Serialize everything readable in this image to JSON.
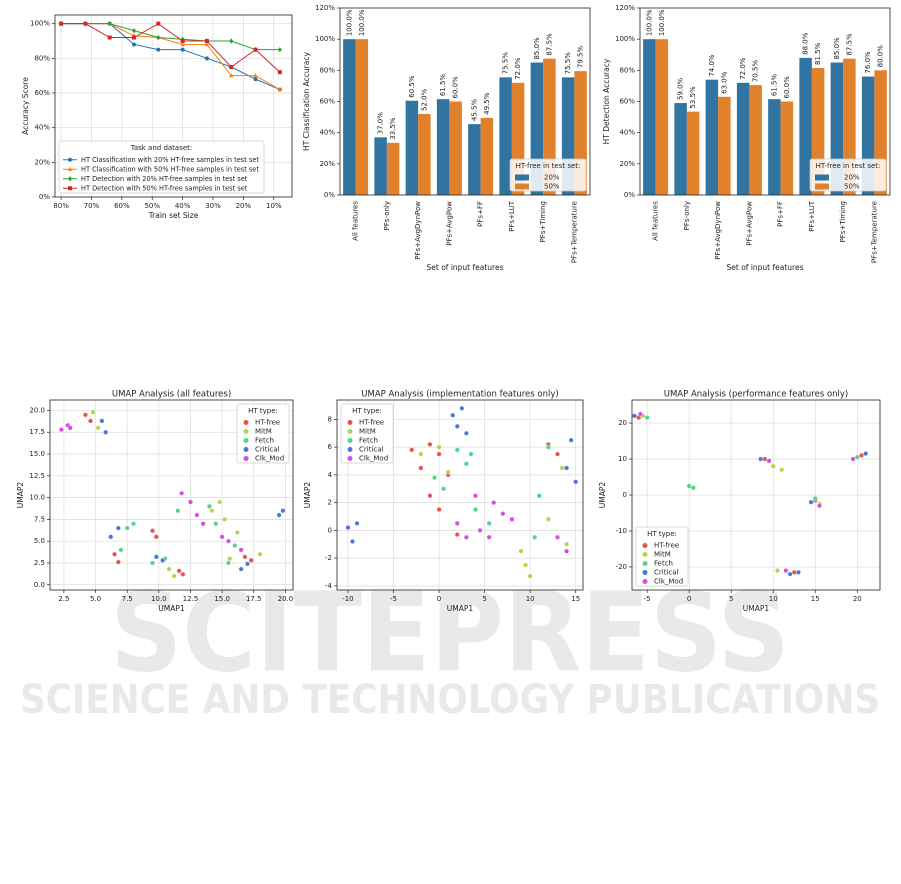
{
  "watermark": {
    "title": "SCITEPRESS",
    "subtitle": "SCIENCE AND TECHNOLOGY PUBLICATIONS"
  },
  "chart_data": [
    {
      "type": "line",
      "xlabel": "Train set Size",
      "ylabel": "Accuracy Score",
      "x": [
        80,
        72,
        64,
        56,
        48,
        40,
        32,
        24,
        16,
        8
      ],
      "xlim": [
        82,
        4
      ],
      "xticks": [
        {
          "value": 80,
          "label": "80%"
        },
        {
          "value": 70,
          "label": "70%"
        },
        {
          "value": 60,
          "label": "60%"
        },
        {
          "value": 50,
          "label": "50%"
        },
        {
          "value": 40,
          "label": "40%"
        },
        {
          "value": 30,
          "label": "30%"
        },
        {
          "value": 20,
          "label": "20%"
        },
        {
          "value": 10,
          "label": "10%"
        }
      ],
      "ylim": [
        0,
        105
      ],
      "yticks": [
        {
          "value": 0,
          "label": "0%"
        },
        {
          "value": 20,
          "label": "20%"
        },
        {
          "value": 40,
          "label": "40%"
        },
        {
          "value": 60,
          "label": "60%"
        },
        {
          "value": 80,
          "label": "80%"
        },
        {
          "value": 100,
          "label": "100%"
        }
      ],
      "grid": true,
      "legend": "lower left",
      "legend_title": "Task and dataset:",
      "series": [
        {
          "name": "HT Classification with 20% HT-free samples in test set",
          "color": "#1f77b4",
          "marker": "circle",
          "values": [
            100,
            100,
            100,
            88,
            85,
            85,
            80,
            75,
            68,
            62
          ]
        },
        {
          "name": "HT Classification with 50% HT-free samples in test set",
          "color": "#ff7f0e",
          "marker": "triangle",
          "values": [
            100,
            100,
            100,
            93,
            92,
            88,
            88,
            70,
            70,
            62
          ]
        },
        {
          "name": "HT Detection with 20% HT-free samples in test set",
          "color": "#2ca02c",
          "marker": "diamond",
          "values": [
            100,
            100,
            100,
            96,
            92,
            91,
            90,
            90,
            85,
            85
          ]
        },
        {
          "name": "HT Detection with 50% HT-free samples in test set",
          "color": "#d62728",
          "marker": "square",
          "values": [
            100,
            100,
            92,
            92,
            100,
            90,
            90,
            75,
            85,
            72
          ]
        }
      ]
    },
    {
      "type": "bar",
      "xlabel": "Set of input features",
      "ylabel": "HT Classification Accuracy",
      "categories": [
        "All features",
        "PFs-only",
        "PFs+AvgDynPow",
        "PFs+AvgPow",
        "PFs+FF",
        "PFs+LUT",
        "PFs+Timing",
        "PFs+Temperature"
      ],
      "ylim": [
        0,
        120
      ],
      "yticks": [
        {
          "value": 0,
          "label": "0%"
        },
        {
          "value": 20,
          "label": "20%"
        },
        {
          "value": 40,
          "label": "40%"
        },
        {
          "value": 60,
          "label": "60%"
        },
        {
          "value": 80,
          "label": "80%"
        },
        {
          "value": 100,
          "label": "100%"
        },
        {
          "value": 120,
          "label": "120%"
        }
      ],
      "grid": false,
      "legend": "lower right",
      "legend_title": "HT-free in test set:",
      "series": [
        {
          "name": "20%",
          "color": "#3274a1",
          "values": [
            100,
            37,
            60.5,
            61.5,
            45.5,
            75.5,
            85,
            75.5
          ],
          "value_labels": [
            "100.0%",
            "37.0%",
            "60.5%",
            "61.5%",
            "45.5%",
            "75.5%",
            "85.0%",
            "75.5%"
          ]
        },
        {
          "name": "50%",
          "color": "#e1812c",
          "values": [
            100,
            33.5,
            52,
            60,
            49.5,
            72,
            87.5,
            79.5
          ],
          "value_labels": [
            "100.0%",
            "33.5%",
            "52.0%",
            "60.0%",
            "49.5%",
            "72.0%",
            "87.5%",
            "79.5%"
          ]
        }
      ]
    },
    {
      "type": "bar",
      "xlabel": "Set of input features",
      "ylabel": "HT Detection Accuracy",
      "categories": [
        "All features",
        "PFs-only",
        "PFs+AvgDynPow",
        "PFs+AvgPow",
        "PFs+FF",
        "PFs+LUT",
        "PFs+Timing",
        "PFs+Temperature"
      ],
      "ylim": [
        0,
        120
      ],
      "yticks": [
        {
          "value": 0,
          "label": "0%"
        },
        {
          "value": 20,
          "label": "20%"
        },
        {
          "value": 40,
          "label": "40%"
        },
        {
          "value": 60,
          "label": "60%"
        },
        {
          "value": 80,
          "label": "80%"
        },
        {
          "value": 100,
          "label": "100%"
        },
        {
          "value": 120,
          "label": "120%"
        }
      ],
      "grid": false,
      "legend": "lower right",
      "legend_title": "HT-free in test set:",
      "series": [
        {
          "name": "20%",
          "color": "#3274a1",
          "values": [
            100,
            59,
            74,
            72,
            61.5,
            88,
            85,
            76
          ],
          "value_labels": [
            "100.0%",
            "59.0%",
            "74.0%",
            "72.0%",
            "61.5%",
            "88.0%",
            "85.0%",
            "76.0%"
          ]
        },
        {
          "name": "50%",
          "color": "#e1812c",
          "values": [
            100,
            53.5,
            63,
            70.5,
            60,
            81.5,
            87.5,
            80
          ],
          "value_labels": [
            "100.0%",
            "53.5%",
            "63.0%",
            "70.5%",
            "60.0%",
            "81.5%",
            "87.5%",
            "80.0%"
          ]
        }
      ]
    },
    {
      "type": "scatter",
      "title": "UMAP Analysis (all features)",
      "xlabel": "UMAP1",
      "ylabel": "UMAP2",
      "xlim": [
        1.4,
        20.6
      ],
      "xticks": [
        {
          "value": 2.5,
          "label": "2.5"
        },
        {
          "value": 5,
          "label": "5.0"
        },
        {
          "value": 7.5,
          "label": "7.5"
        },
        {
          "value": 10,
          "label": "10.0"
        },
        {
          "value": 12.5,
          "label": "12.5"
        },
        {
          "value": 15,
          "label": "15.0"
        },
        {
          "value": 17.5,
          "label": "17.5"
        },
        {
          "value": 20,
          "label": "20.0"
        }
      ],
      "ylim": [
        -0.6,
        21.2
      ],
      "yticks": [
        {
          "value": 0,
          "label": "0.0"
        },
        {
          "value": 2.5,
          "label": "2.5"
        },
        {
          "value": 5,
          "label": "5.0"
        },
        {
          "value": 7.5,
          "label": "7.5"
        },
        {
          "value": 10,
          "label": "10.0"
        },
        {
          "value": 12.5,
          "label": "12.5"
        },
        {
          "value": 15,
          "label": "15.0"
        },
        {
          "value": 17.5,
          "label": "17.5"
        },
        {
          "value": 20,
          "label": "20.0"
        }
      ],
      "grid": true,
      "legend": "upper right",
      "legend_title": "HT type:",
      "series": [
        {
          "name": "HT-free",
          "color": "#e8514f",
          "x": [
            4.2,
            4.6,
            6.5,
            6.8,
            9.5,
            9.8,
            11.6,
            11.9,
            16.8,
            17.3
          ],
          "values": [
            19.5,
            18.8,
            3.5,
            2.6,
            6.2,
            5.5,
            1.6,
            1.2,
            3.2,
            2.8
          ]
        },
        {
          "name": "MitM",
          "color": "#b8d44a",
          "x": [
            4.8,
            5.2,
            10.8,
            11.2,
            14.2,
            14.8,
            15.2,
            15.6,
            16.2,
            18.0
          ],
          "values": [
            19.8,
            18.0,
            1.8,
            1.0,
            8.5,
            9.5,
            7.5,
            3.0,
            6.0,
            3.5
          ]
        },
        {
          "name": "Fetch",
          "color": "#4fd68a",
          "x": [
            7.0,
            7.5,
            8.0,
            9.5,
            10.5,
            11.5,
            14.0,
            14.5,
            15.5,
            16.0
          ],
          "values": [
            4.0,
            6.5,
            7.0,
            2.5,
            3.0,
            8.5,
            9.0,
            7.0,
            2.5,
            4.5
          ]
        },
        {
          "name": "Critical",
          "color": "#4a78d8",
          "x": [
            5.5,
            5.8,
            6.2,
            6.8,
            9.8,
            10.3,
            16.5,
            17.0,
            19.5,
            19.8
          ],
          "values": [
            18.8,
            17.5,
            5.5,
            6.5,
            3.2,
            2.8,
            1.8,
            2.4,
            8.0,
            8.5
          ]
        },
        {
          "name": "Clk_Mod",
          "color": "#d44ee0",
          "x": [
            2.3,
            2.8,
            3.0,
            11.8,
            12.5,
            13.0,
            13.5,
            15.0,
            15.5,
            16.5
          ],
          "values": [
            17.8,
            18.3,
            18.0,
            10.5,
            9.5,
            8.0,
            7.0,
            5.5,
            5.0,
            4.0
          ]
        }
      ]
    },
    {
      "type": "scatter",
      "title": "UMAP Analysis (implementation features only)",
      "xlabel": "UMAP1",
      "ylabel": "UMAP2",
      "xlim": [
        -11.2,
        15.8
      ],
      "xticks": [
        -10,
        -5,
        0,
        5,
        10,
        15
      ],
      "ylim": [
        -4.3,
        9.4
      ],
      "yticks": [
        -4,
        -2,
        0,
        2,
        4,
        6,
        8
      ],
      "grid": true,
      "legend": "upper left",
      "legend_title": "HT type:",
      "series": [
        {
          "name": "HT-free",
          "color": "#e8514f",
          "x": [
            -3,
            -2,
            -1,
            0,
            1,
            2,
            -1,
            0,
            12,
            13
          ],
          "values": [
            5.8,
            4.5,
            2.5,
            1.5,
            4.0,
            -0.3,
            6.2,
            5.5,
            6.2,
            5.5
          ]
        },
        {
          "name": "MitM",
          "color": "#b8d44a",
          "x": [
            -2,
            0,
            1,
            9,
            9.5,
            10,
            12,
            13,
            13.5,
            14
          ],
          "values": [
            5.5,
            6.0,
            4.2,
            -1.5,
            -2.5,
            -3.3,
            0.8,
            -0.5,
            4.5,
            -1.0
          ]
        },
        {
          "name": "Fetch",
          "color": "#4fd68a",
          "x": [
            -0.5,
            0.5,
            2,
            3,
            3.5,
            4,
            5.5,
            10.5,
            11,
            12
          ],
          "values": [
            3.8,
            3.0,
            5.8,
            4.8,
            5.5,
            1.5,
            0.5,
            -0.5,
            2.5,
            6.0
          ]
        },
        {
          "name": "Critical",
          "color": "#4a78d8",
          "x": [
            -10,
            -9.5,
            -9,
            1.5,
            2,
            2.5,
            3,
            14,
            14.5,
            15
          ],
          "values": [
            0.2,
            -0.8,
            0.5,
            8.3,
            7.5,
            8.8,
            7.0,
            4.5,
            6.5,
            3.5
          ]
        },
        {
          "name": "Clk_Mod",
          "color": "#d44ee0",
          "x": [
            2,
            3,
            4,
            4.5,
            5.5,
            6,
            7,
            8,
            13,
            14
          ],
          "values": [
            0.5,
            -0.5,
            2.5,
            0.0,
            -0.5,
            2.0,
            1.2,
            0.8,
            -0.5,
            -1.5
          ]
        }
      ]
    },
    {
      "type": "scatter",
      "title": "UMAP Analysis (performance features only)",
      "xlabel": "UMAP1",
      "ylabel": "UMAP2",
      "xlim": [
        -6.8,
        22.7
      ],
      "xticks": [
        -5,
        0,
        5,
        10,
        15,
        20
      ],
      "ylim": [
        -26.4,
        26.4
      ],
      "yticks": [
        -20,
        -10,
        0,
        10,
        20
      ],
      "grid": true,
      "legend": "lower left",
      "legend_title": "HT type:",
      "series": [
        {
          "name": "HT-free",
          "color": "#e8514f",
          "x": [
            -6,
            9,
            15,
            12.5,
            20.5
          ],
          "values": [
            21.5,
            10,
            -1.5,
            -21.5,
            11
          ]
        },
        {
          "name": "MitM",
          "color": "#b8d44a",
          "x": [
            -5.5,
            10,
            11,
            15.5,
            10.5
          ],
          "values": [
            22,
            8,
            7,
            -2.5,
            -21
          ]
        },
        {
          "name": "Fetch",
          "color": "#4fd68a",
          "x": [
            0,
            0.5,
            -5,
            15,
            20
          ],
          "values": [
            2.5,
            2,
            21.5,
            -1,
            10.5
          ]
        },
        {
          "name": "Critical",
          "color": "#4a78d8",
          "x": [
            -6.5,
            8.5,
            14.5,
            12,
            13,
            21
          ],
          "values": [
            22,
            10,
            -2,
            -22,
            -21.5,
            11.5
          ]
        },
        {
          "name": "Clk_Mod",
          "color": "#d44ee0",
          "x": [
            -5.8,
            9.5,
            15.5,
            11.5,
            19.5
          ],
          "values": [
            22.5,
            9.5,
            -3,
            -21,
            10
          ]
        }
      ]
    }
  ]
}
